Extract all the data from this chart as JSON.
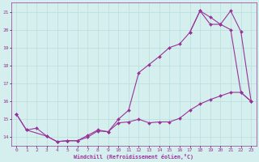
{
  "xlabel": "Windchill (Refroidissement éolien,°C)",
  "xlim": [
    -0.5,
    23.5
  ],
  "ylim": [
    13.5,
    21.5
  ],
  "xticks": [
    0,
    1,
    2,
    3,
    4,
    5,
    6,
    7,
    8,
    9,
    10,
    11,
    12,
    13,
    14,
    15,
    16,
    17,
    18,
    19,
    20,
    21,
    22,
    23
  ],
  "yticks": [
    14,
    15,
    16,
    17,
    18,
    19,
    20,
    21
  ],
  "bg_color": "#d5efee",
  "line_color": "#993399",
  "grid_color": "#b8dedd",
  "line1_x": [
    0,
    1,
    2,
    3,
    4,
    5,
    6,
    7,
    8,
    9,
    10,
    11,
    12,
    13,
    14,
    15,
    16,
    17,
    18,
    19,
    20,
    21,
    22,
    23
  ],
  "line1_y": [
    15.3,
    14.4,
    14.5,
    14.05,
    13.75,
    13.8,
    13.8,
    14.0,
    14.35,
    14.3,
    14.8,
    14.85,
    15.0,
    14.8,
    14.85,
    14.85,
    15.05,
    15.5,
    15.85,
    16.1,
    16.3,
    16.5,
    16.5,
    16.0
  ],
  "line2_x": [
    0,
    1,
    3,
    4,
    5,
    6,
    7,
    8,
    9,
    10,
    11,
    12,
    13,
    14,
    15,
    16,
    17,
    18,
    19,
    20,
    21,
    22,
    23
  ],
  "line2_y": [
    15.3,
    14.4,
    14.05,
    13.75,
    13.8,
    13.8,
    14.1,
    14.4,
    14.3,
    15.0,
    15.5,
    17.6,
    18.05,
    18.5,
    19.0,
    19.2,
    19.85,
    21.05,
    20.3,
    20.3,
    20.0,
    16.5,
    16.0
  ],
  "line3_x": [
    17,
    18,
    19,
    20,
    21,
    22,
    23
  ],
  "line3_y": [
    19.85,
    21.05,
    20.7,
    20.3,
    21.05,
    19.9,
    16.0
  ]
}
